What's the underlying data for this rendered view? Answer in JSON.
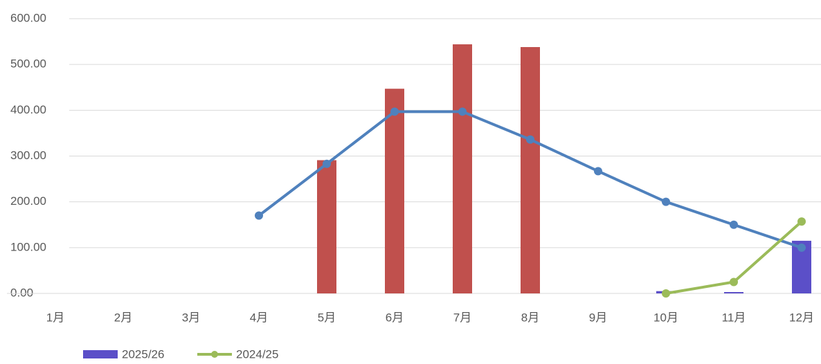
{
  "chart_data": {
    "type": "bar",
    "categories": [
      "1月",
      "2月",
      "3月",
      "4月",
      "5月",
      "6月",
      "7月",
      "8月",
      "9月",
      "10月",
      "11月",
      "12月"
    ],
    "series": [
      {
        "type": "bar",
        "color": "#c0504d",
        "values": [
          null,
          null,
          null,
          null,
          291,
          447,
          544,
          538,
          null,
          null,
          null,
          null
        ]
      },
      {
        "name": "2025/26",
        "type": "bar",
        "color": "#5b4fc8",
        "values": [
          null,
          null,
          null,
          null,
          null,
          null,
          null,
          null,
          null,
          5,
          3,
          115
        ]
      },
      {
        "type": "line",
        "color": "#4f81bd",
        "values": [
          null,
          null,
          null,
          170,
          283,
          397,
          397,
          336,
          267,
          200,
          150,
          100
        ]
      },
      {
        "name": "2024/25",
        "type": "line",
        "color": "#9bbb59",
        "values": [
          null,
          null,
          null,
          null,
          null,
          null,
          null,
          null,
          null,
          0,
          25,
          157
        ]
      }
    ],
    "ylim": [
      0,
      600
    ],
    "yticks": [
      {
        "value": 0,
        "label": "0.00"
      },
      {
        "value": 100,
        "label": "100.00"
      },
      {
        "value": 200,
        "label": "200.00"
      },
      {
        "value": 300,
        "label": "300.00"
      },
      {
        "value": 400,
        "label": "400.00"
      },
      {
        "value": 500,
        "label": "500.00"
      },
      {
        "value": 600,
        "label": "600.00"
      }
    ],
    "grid": true
  }
}
